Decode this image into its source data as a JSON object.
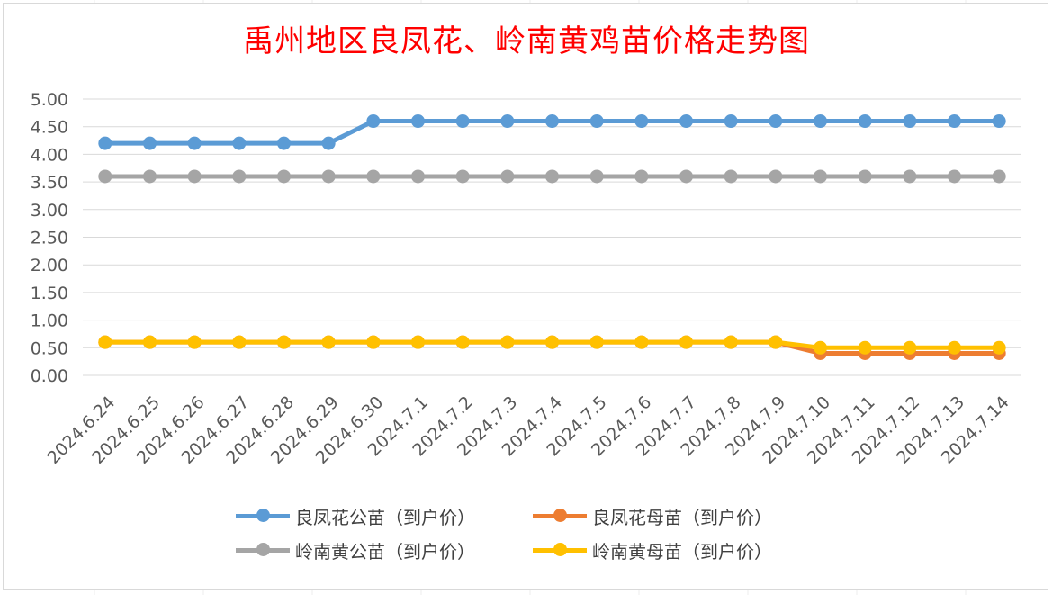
{
  "chart_data": {
    "type": "line",
    "title": "禹州地区良凤花、岭南黄鸡苗价格走势图",
    "xlabel": "",
    "ylabel": "",
    "ylim": [
      0,
      5
    ],
    "ytick_step": 0.5,
    "grid": true,
    "legend_position": "bottom",
    "categories": [
      "2024.6.24",
      "2024.6.25",
      "2024.6.26",
      "2024.6.27",
      "2024.6.28",
      "2024.6.29",
      "2024.6.30",
      "2024.7.1",
      "2024.7.2",
      "2024.7.3",
      "2024.7.4",
      "2024.7.5",
      "2024.7.6",
      "2024.7.7",
      "2024.7.8",
      "2024.7.9",
      "2024.7.10",
      "2024.7.11",
      "2024.7.12",
      "2024.7.13",
      "2024.7.14"
    ],
    "series": [
      {
        "name": "良凤花公苗（到户价）",
        "color": "#5b9bd5",
        "values": [
          4.2,
          4.2,
          4.2,
          4.2,
          4.2,
          4.2,
          4.6,
          4.6,
          4.6,
          4.6,
          4.6,
          4.6,
          4.6,
          4.6,
          4.6,
          4.6,
          4.6,
          4.6,
          4.6,
          4.6,
          4.6
        ]
      },
      {
        "name": "良凤花母苗（到户价）",
        "color": "#ed7d31",
        "values": [
          0.6,
          0.6,
          0.6,
          0.6,
          0.6,
          0.6,
          0.6,
          0.6,
          0.6,
          0.6,
          0.6,
          0.6,
          0.6,
          0.6,
          0.6,
          0.6,
          0.4,
          0.4,
          0.4,
          0.4,
          0.4
        ]
      },
      {
        "name": "岭南黄公苗（到户价）",
        "color": "#a5a5a5",
        "values": [
          3.6,
          3.6,
          3.6,
          3.6,
          3.6,
          3.6,
          3.6,
          3.6,
          3.6,
          3.6,
          3.6,
          3.6,
          3.6,
          3.6,
          3.6,
          3.6,
          3.6,
          3.6,
          3.6,
          3.6,
          3.6
        ]
      },
      {
        "name": "岭南黄母苗（到户价）",
        "color": "#ffc000",
        "values": [
          0.6,
          0.6,
          0.6,
          0.6,
          0.6,
          0.6,
          0.6,
          0.6,
          0.6,
          0.6,
          0.6,
          0.6,
          0.6,
          0.6,
          0.6,
          0.6,
          0.5,
          0.5,
          0.5,
          0.5,
          0.5
        ]
      }
    ],
    "y_tick_labels": [
      "0.00",
      "0.50",
      "1.00",
      "1.50",
      "2.00",
      "2.50",
      "3.00",
      "3.50",
      "4.00",
      "4.50",
      "5.00"
    ]
  },
  "legend": {
    "items": [
      {
        "label": "良凤花公苗（到户价）",
        "color": "#5b9bd5"
      },
      {
        "label": "良凤花母苗（到户价）",
        "color": "#ed7d31"
      },
      {
        "label": "岭南黄公苗（到户价）",
        "color": "#a5a5a5"
      },
      {
        "label": "岭南黄母苗（到户价）",
        "color": "#ffc000"
      }
    ]
  }
}
